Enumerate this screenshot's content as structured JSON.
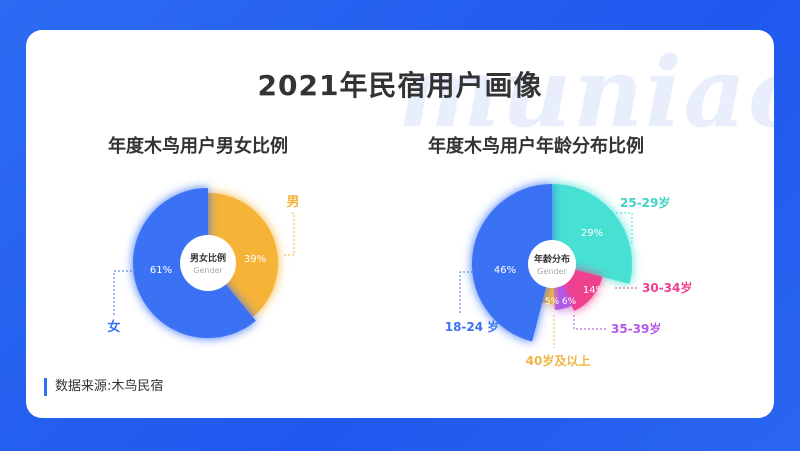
{
  "page": {
    "watermark": "muniao",
    "title": "2021年民宿用户画像",
    "source": "数据来源:木鸟民宿"
  },
  "colors": {
    "blue": "#3b72f3",
    "orange": "#f5b338",
    "teal": "#47e1d3",
    "pink": "#ef3f8e",
    "purple": "#b259e8",
    "yellow": "#f0b443"
  },
  "chart_data": [
    {
      "type": "pie",
      "title": "年度木鸟用户男女比例",
      "center_label": "男女比例",
      "center_sublabel": "Gender",
      "slices": [
        {
          "name": "男",
          "value": 39,
          "label": "39%",
          "color": "#f5b338"
        },
        {
          "name": "女",
          "value": 61,
          "label": "61%",
          "color": "#3b72f3"
        }
      ]
    },
    {
      "type": "pie",
      "title": "年度木鸟用户年龄分布比例",
      "center_label": "年龄分布",
      "center_sublabel": "Gender",
      "slices": [
        {
          "name": "25-29岁",
          "value": 29,
          "label": "29%",
          "color": "#47e1d3"
        },
        {
          "name": "30-34岁",
          "value": 14,
          "label": "14%",
          "color": "#ef3f8e"
        },
        {
          "name": "35-39岁",
          "value": 6,
          "label": "6%",
          "color": "#b259e8"
        },
        {
          "name": "40岁及以上",
          "value": 5,
          "label": "5%",
          "color": "#f0b443"
        },
        {
          "name": "18-24 岁",
          "value": 46,
          "label": "46%",
          "color": "#3b72f3"
        }
      ]
    }
  ]
}
